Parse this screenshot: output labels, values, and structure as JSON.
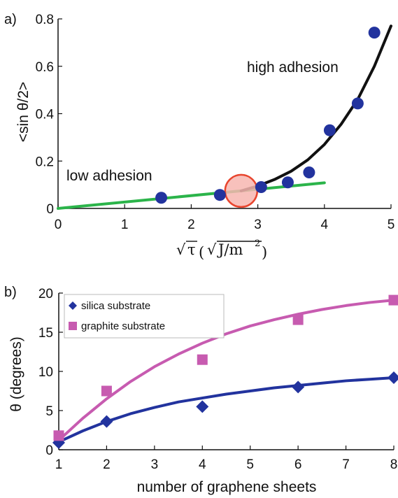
{
  "chart_data": [
    {
      "panel_label": "a)",
      "type": "scatter",
      "xlabel_sqrt_symbol": "√",
      "xlabel_tau": "τ",
      "xlabel_units": "J/m",
      "xlabel_units_exp": "2",
      "ylabel": "<sin θ/2>",
      "xlim": [
        0,
        5
      ],
      "ylim": [
        0,
        0.8
      ],
      "xticks": [
        "0",
        "1",
        "2",
        "3",
        "4",
        "5"
      ],
      "yticks": [
        "0",
        "0.2",
        "0.4",
        "0.6",
        "0.8"
      ],
      "grid": false,
      "points": {
        "x": [
          1.55,
          2.43,
          3.05,
          3.45,
          3.77,
          4.08,
          4.5,
          4.75
        ],
        "y": [
          0.045,
          0.057,
          0.09,
          0.11,
          0.152,
          0.33,
          0.443,
          0.742
        ],
        "color": "#22339e"
      },
      "fit_lines": [
        {
          "label": "low adhesion",
          "color": "#2bb44a",
          "x": [
            0,
            4.0
          ],
          "y": [
            0.0,
            0.108
          ]
        },
        {
          "label": "high adhesion",
          "color": "#111111",
          "x": [
            2.75,
            3.0,
            3.25,
            3.5,
            3.75,
            4.0,
            4.25,
            4.5,
            4.75,
            5.0
          ],
          "y": [
            0.074,
            0.095,
            0.122,
            0.157,
            0.205,
            0.27,
            0.355,
            0.46,
            0.6,
            0.77
          ]
        }
      ],
      "annotations": [
        "low adhesion",
        "high adhesion"
      ],
      "highlight_circle": {
        "x": 2.75,
        "y": 0.074,
        "fill": "#f7b6b0",
        "stroke": "#e8452e"
      }
    },
    {
      "panel_label": "b)",
      "type": "scatter",
      "xlabel": "number of graphene sheets",
      "ylabel": "θ (degrees)",
      "xlim": [
        1,
        8
      ],
      "ylim": [
        0,
        20
      ],
      "xticks": [
        "1",
        "2",
        "3",
        "4",
        "5",
        "6",
        "7",
        "8"
      ],
      "yticks": [
        "0",
        "5",
        "10",
        "15",
        "20"
      ],
      "grid": false,
      "legend_position": "top-left",
      "series": [
        {
          "name": "silica substrate",
          "marker": "diamond",
          "color": "#22339e",
          "x": [
            1,
            2,
            4,
            6,
            8
          ],
          "y": [
            0.9,
            3.6,
            5.5,
            8.0,
            9.2
          ],
          "fit": {
            "x": [
              1,
              1.5,
              2,
              2.5,
              3,
              3.5,
              4,
              4.5,
              5,
              5.5,
              6,
              6.5,
              7,
              7.5,
              8
            ],
            "y": [
              1.0,
              2.4,
              3.6,
              4.6,
              5.4,
              6.1,
              6.6,
              7.1,
              7.5,
              7.9,
              8.2,
              8.5,
              8.8,
              9.0,
              9.2
            ]
          }
        },
        {
          "name": "graphite substrate",
          "marker": "square",
          "color": "#c75bb0",
          "x": [
            1,
            2,
            4,
            6,
            8
          ],
          "y": [
            1.8,
            7.5,
            11.5,
            16.6,
            19.1
          ],
          "fit": {
            "x": [
              1,
              1.5,
              2,
              2.5,
              3,
              3.5,
              4,
              4.5,
              5,
              5.5,
              6,
              6.5,
              7,
              7.5,
              8
            ],
            "y": [
              1.2,
              4.0,
              6.5,
              8.7,
              10.6,
              12.2,
              13.6,
              14.8,
              15.8,
              16.6,
              17.3,
              17.9,
              18.4,
              18.8,
              19.1
            ]
          }
        }
      ]
    }
  ]
}
